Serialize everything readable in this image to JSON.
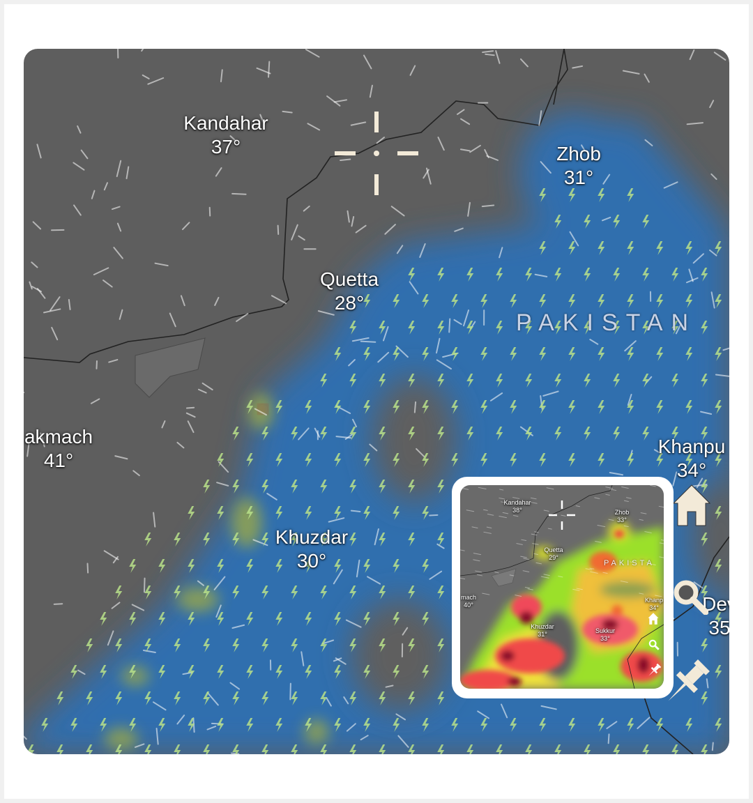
{
  "main_map": {
    "labels": [
      {
        "name": "Kandahar",
        "temp": "37°"
      },
      {
        "name": "Zhob",
        "temp": "31°"
      },
      {
        "name": "Quetta",
        "temp": "28°"
      },
      {
        "name": "akmach",
        "temp": "41°"
      },
      {
        "name": "Khuzdar",
        "temp": "30°"
      },
      {
        "name": "Khanpu",
        "temp": "34°"
      },
      {
        "name": "Dev",
        "temp": "35"
      }
    ],
    "country": "PAKISTAN",
    "layer": "thunderstorm / precipitation",
    "colors": {
      "land": "#5e5e5e",
      "rain": "#2f6fb3",
      "lightning": "#b8e08a"
    }
  },
  "inset_map": {
    "labels": [
      {
        "name": "Kandahar",
        "temp": "38°"
      },
      {
        "name": "Zhob",
        "temp": "33°"
      },
      {
        "name": "Quetta",
        "temp": "29°"
      },
      {
        "name": "mach",
        "temp": "40°"
      },
      {
        "name": "Khuzdar",
        "temp": "31°"
      },
      {
        "name": "Sukkur",
        "temp": "33°"
      },
      {
        "name": "Khanp",
        "temp": "34°"
      }
    ],
    "country": "PAKISTA",
    "layer": "rain intensity",
    "colors": {
      "light": "#9be02a",
      "moderate": "#f0e23a",
      "heavy": "#f04a3a",
      "extreme": "#8a0a2a"
    }
  },
  "icons": [
    "crosshair-icon",
    "home-icon",
    "search-icon",
    "pin-icon"
  ]
}
